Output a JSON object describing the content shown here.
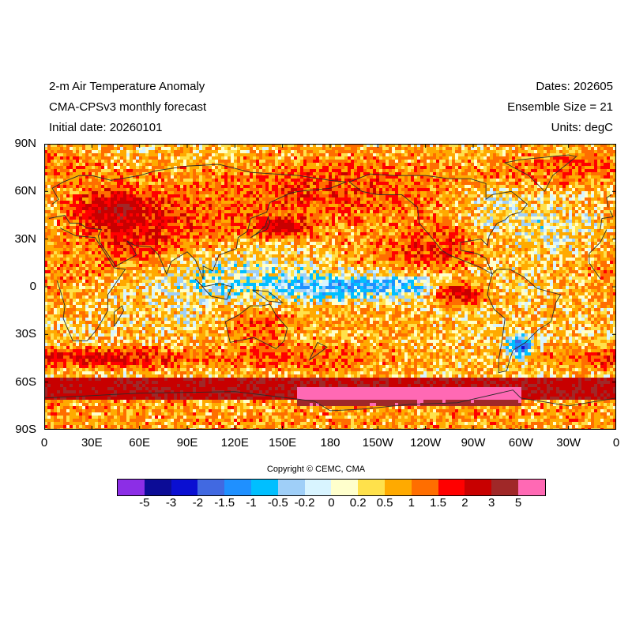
{
  "header": {
    "left": [
      "2-m Air Temperature Anomaly",
      "CMA-CPSv3 monthly forecast",
      "Initial date: 20260101"
    ],
    "right": [
      "Dates: 202605",
      "Ensemble Size = 21",
      "Units: degC"
    ]
  },
  "map": {
    "projection": "cylindrical-equidistant",
    "lat_ticks": [
      "90N",
      "60N",
      "30N",
      "0",
      "30S",
      "60S",
      "90S"
    ],
    "lon_ticks": [
      "0",
      "30E",
      "60E",
      "90E",
      "120E",
      "150E",
      "180",
      "150W",
      "120W",
      "90W",
      "60W",
      "30W",
      "0"
    ]
  },
  "copyright": "Copyright © CEMC, CMA",
  "colorbar": {
    "colors": [
      "#8c2ee6",
      "#0c0c96",
      "#0a0fd2",
      "#4169e1",
      "#1f90ff",
      "#00bfff",
      "#9fcff8",
      "#d8f4ff",
      "#ffffcc",
      "#ffe14b",
      "#ffaa00",
      "#ff6e00",
      "#ff0000",
      "#c80000",
      "#a02828",
      "#ff69b4"
    ],
    "labels": [
      "-5",
      "-3",
      "-2",
      "-1.5",
      "-1",
      "-0.5",
      "-0.2",
      "0",
      "0.2",
      "0.5",
      "1",
      "1.5",
      "2",
      "3",
      "5"
    ]
  }
}
